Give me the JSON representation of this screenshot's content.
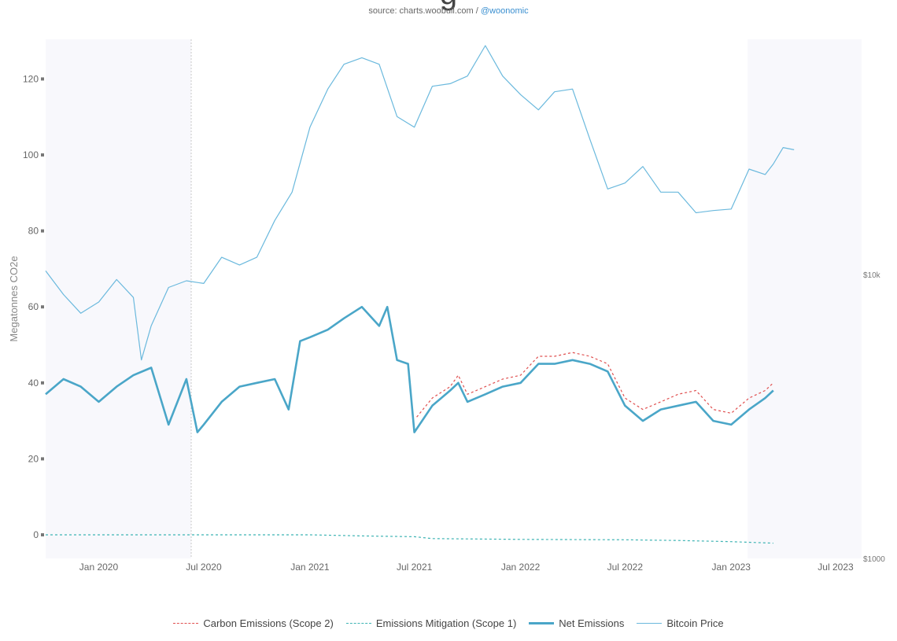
{
  "header": {
    "title_fragment": "g",
    "source_prefix": "source: charts.woobull.com / ",
    "source_handle": "@woonomic"
  },
  "chart_data": {
    "type": "line",
    "ylabel": "Megatonnes CO2e",
    "y_ticks": [
      0,
      20,
      40,
      60,
      80,
      100,
      120
    ],
    "ylim": [
      -5,
      130
    ],
    "right_axis": {
      "label_ticks": [
        {
          "value": 10000,
          "label": "$10k"
        },
        {
          "value": 1000,
          "label": "$1000"
        }
      ],
      "scale": "log",
      "range": [
        1000,
        80000
      ]
    },
    "x_ticks": [
      {
        "date": "2020-01-01",
        "label": "Jan 2020"
      },
      {
        "date": "2020-07-01",
        "label": "Jul 2020"
      },
      {
        "date": "2021-01-01",
        "label": "Jan 2021"
      },
      {
        "date": "2021-07-01",
        "label": "Jul 2021"
      },
      {
        "date": "2022-01-01",
        "label": "Jan 2022"
      },
      {
        "date": "2022-07-01",
        "label": "Jul 2022"
      },
      {
        "date": "2023-01-01",
        "label": "Jan 2023"
      },
      {
        "date": "2023-07-01",
        "label": "Jul 2023"
      }
    ],
    "x_range": [
      "2019-10-01",
      "2023-08-15"
    ],
    "grid": false,
    "legend_position": "bottom",
    "series": [
      {
        "name": "Carbon Emissions (Scope 2)",
        "axis": "left",
        "style": "dashed",
        "color": "#e05050",
        "points": [
          [
            "2021-07-05",
            31
          ],
          [
            "2021-08-01",
            36
          ],
          [
            "2021-09-01",
            39
          ],
          [
            "2021-09-15",
            42
          ],
          [
            "2021-10-01",
            37
          ],
          [
            "2021-11-01",
            39
          ],
          [
            "2021-12-01",
            41
          ],
          [
            "2022-01-01",
            42
          ],
          [
            "2022-02-01",
            47
          ],
          [
            "2022-03-01",
            47
          ],
          [
            "2022-04-01",
            48
          ],
          [
            "2022-05-01",
            47
          ],
          [
            "2022-06-01",
            45
          ],
          [
            "2022-07-01",
            36
          ],
          [
            "2022-08-01",
            33
          ],
          [
            "2022-09-01",
            35
          ],
          [
            "2022-10-01",
            37
          ],
          [
            "2022-11-01",
            38
          ],
          [
            "2022-12-01",
            33
          ],
          [
            "2023-01-01",
            32
          ],
          [
            "2023-02-01",
            36
          ],
          [
            "2023-03-01",
            38
          ],
          [
            "2023-03-15",
            40
          ]
        ]
      },
      {
        "name": "Emissions Mitigation (Scope 1)",
        "axis": "left",
        "style": "dashed",
        "color": "#3fb4b4",
        "points": [
          [
            "2019-10-01",
            0
          ],
          [
            "2020-06-01",
            0
          ],
          [
            "2021-01-01",
            0
          ],
          [
            "2021-04-01",
            -0.3
          ],
          [
            "2021-07-01",
            -0.5
          ],
          [
            "2021-08-01",
            -1
          ],
          [
            "2022-01-01",
            -1.2
          ],
          [
            "2022-07-01",
            -1.3
          ],
          [
            "2022-10-01",
            -1.5
          ],
          [
            "2023-01-01",
            -1.8
          ],
          [
            "2023-03-15",
            -2.2
          ]
        ]
      },
      {
        "name": "Net Emissions",
        "axis": "left",
        "style": "solid-thick",
        "color": "#4aa6c8",
        "points": [
          [
            "2019-10-01",
            37
          ],
          [
            "2019-11-01",
            41
          ],
          [
            "2019-12-01",
            39
          ],
          [
            "2020-01-01",
            35
          ],
          [
            "2020-02-01",
            39
          ],
          [
            "2020-03-01",
            42
          ],
          [
            "2020-04-01",
            44
          ],
          [
            "2020-05-01",
            29
          ],
          [
            "2020-06-01",
            41
          ],
          [
            "2020-06-20",
            27
          ],
          [
            "2020-07-01",
            29
          ],
          [
            "2020-08-01",
            35
          ],
          [
            "2020-09-01",
            39
          ],
          [
            "2020-10-01",
            40
          ],
          [
            "2020-11-01",
            41
          ],
          [
            "2020-11-25",
            33
          ],
          [
            "2020-12-15",
            51
          ],
          [
            "2021-01-01",
            52
          ],
          [
            "2021-02-01",
            54
          ],
          [
            "2021-03-01",
            57
          ],
          [
            "2021-04-01",
            60
          ],
          [
            "2021-05-01",
            55
          ],
          [
            "2021-05-15",
            60
          ],
          [
            "2021-06-01",
            46
          ],
          [
            "2021-06-20",
            45
          ],
          [
            "2021-07-01",
            27
          ],
          [
            "2021-08-01",
            34
          ],
          [
            "2021-09-01",
            38
          ],
          [
            "2021-09-15",
            40
          ],
          [
            "2021-10-01",
            35
          ],
          [
            "2021-11-01",
            37
          ],
          [
            "2021-12-01",
            39
          ],
          [
            "2022-01-01",
            40
          ],
          [
            "2022-02-01",
            45
          ],
          [
            "2022-03-01",
            45
          ],
          [
            "2022-04-01",
            46
          ],
          [
            "2022-05-01",
            45
          ],
          [
            "2022-06-01",
            43
          ],
          [
            "2022-07-01",
            34
          ],
          [
            "2022-08-01",
            30
          ],
          [
            "2022-09-01",
            33
          ],
          [
            "2022-10-01",
            34
          ],
          [
            "2022-11-01",
            35
          ],
          [
            "2022-12-01",
            30
          ],
          [
            "2023-01-01",
            29
          ],
          [
            "2023-02-01",
            33
          ],
          [
            "2023-03-01",
            36
          ],
          [
            "2023-03-15",
            38
          ]
        ]
      },
      {
        "name": "Bitcoin Price",
        "axis": "right",
        "style": "solid-thin",
        "color": "#6bb9dd",
        "points": [
          [
            "2019-10-01",
            10300
          ],
          [
            "2019-11-01",
            8500
          ],
          [
            "2019-12-01",
            7300
          ],
          [
            "2020-01-01",
            8000
          ],
          [
            "2020-02-01",
            9600
          ],
          [
            "2020-03-01",
            8300
          ],
          [
            "2020-03-15",
            5000
          ],
          [
            "2020-04-01",
            6600
          ],
          [
            "2020-05-01",
            9000
          ],
          [
            "2020-06-01",
            9500
          ],
          [
            "2020-07-01",
            9300
          ],
          [
            "2020-08-01",
            11500
          ],
          [
            "2020-09-01",
            10800
          ],
          [
            "2020-10-01",
            11500
          ],
          [
            "2020-11-01",
            15500
          ],
          [
            "2020-12-01",
            19500
          ],
          [
            "2021-01-01",
            33000
          ],
          [
            "2021-02-01",
            45000
          ],
          [
            "2021-03-01",
            55000
          ],
          [
            "2021-04-01",
            58000
          ],
          [
            "2021-05-01",
            55000
          ],
          [
            "2021-06-01",
            36000
          ],
          [
            "2021-07-01",
            33000
          ],
          [
            "2021-08-01",
            46000
          ],
          [
            "2021-09-01",
            47000
          ],
          [
            "2021-10-01",
            50000
          ],
          [
            "2021-11-01",
            64000
          ],
          [
            "2021-12-01",
            50000
          ],
          [
            "2022-01-01",
            43000
          ],
          [
            "2022-02-01",
            38000
          ],
          [
            "2022-03-01",
            44000
          ],
          [
            "2022-04-01",
            45000
          ],
          [
            "2022-05-01",
            30000
          ],
          [
            "2022-06-01",
            20000
          ],
          [
            "2022-07-01",
            21000
          ],
          [
            "2022-08-01",
            24000
          ],
          [
            "2022-09-01",
            19500
          ],
          [
            "2022-10-01",
            19500
          ],
          [
            "2022-11-01",
            16500
          ],
          [
            "2022-12-01",
            16800
          ],
          [
            "2023-01-01",
            17000
          ],
          [
            "2023-02-01",
            23500
          ],
          [
            "2023-03-01",
            22500
          ],
          [
            "2023-03-15",
            24500
          ],
          [
            "2023-04-01",
            28000
          ],
          [
            "2023-04-20",
            27500
          ]
        ]
      }
    ]
  }
}
